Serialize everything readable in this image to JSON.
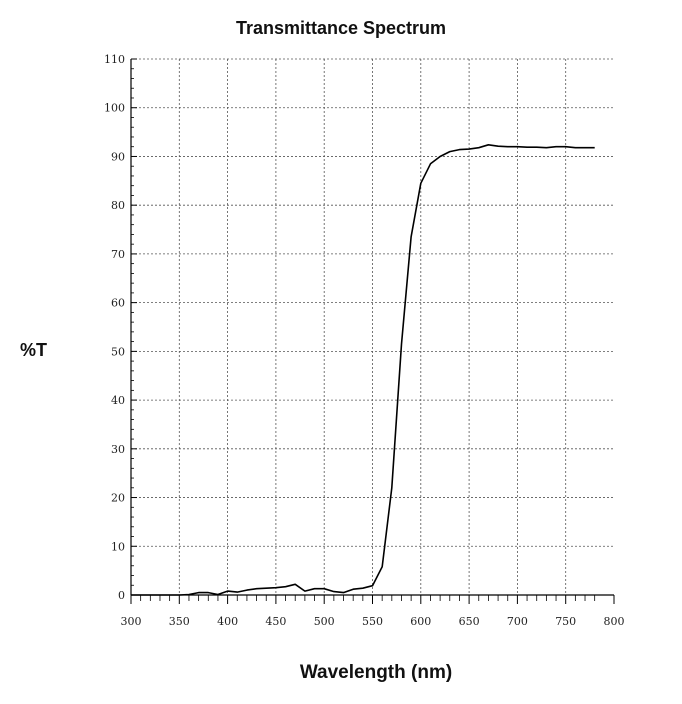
{
  "chart_data": {
    "type": "line",
    "title": "Transmittance Spectrum",
    "xlabel": "Wavelength (nm)",
    "ylabel": "%T",
    "xlim": [
      300,
      800
    ],
    "ylim": [
      0,
      110
    ],
    "x_ticks": [
      "300",
      "350",
      "400",
      "450",
      "500",
      "550",
      "600",
      "650",
      "700",
      "750",
      "800"
    ],
    "y_ticks": [
      "0",
      "10",
      "20",
      "30",
      "40",
      "50",
      "60",
      "70",
      "80",
      "90",
      "100",
      "110"
    ],
    "grid": true,
    "legend": "none",
    "line_color": "#000000",
    "series": [
      {
        "x": [
          300,
          310,
          320,
          330,
          340,
          350,
          360,
          370,
          380,
          390,
          400,
          410,
          420,
          430,
          440,
          450,
          460,
          470,
          480,
          490,
          500,
          510,
          520,
          530,
          540,
          550,
          560,
          570,
          580,
          590,
          600,
          610,
          620,
          630,
          640,
          650,
          660,
          670,
          680,
          690,
          700,
          710,
          720,
          730,
          740,
          750,
          760,
          770,
          780
        ],
        "values": [
          0,
          0,
          0,
          0,
          0,
          0,
          0.1,
          0.5,
          0.5,
          0.1,
          0.8,
          0.6,
          1.0,
          1.3,
          1.4,
          1.5,
          1.7,
          2.2,
          0.8,
          1.3,
          1.3,
          0.7,
          0.5,
          1.2,
          1.4,
          1.9,
          5.8,
          22.0,
          51.5,
          73.5,
          84.5,
          88.5,
          90.0,
          91.0,
          91.4,
          91.5,
          91.8,
          92.4,
          92.1,
          92.0,
          92.0,
          91.9,
          91.9,
          91.8,
          92.0,
          92.0,
          91.8,
          91.8,
          91.8
        ]
      }
    ]
  }
}
